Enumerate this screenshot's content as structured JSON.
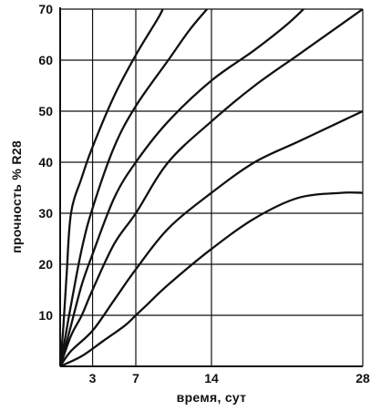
{
  "chart_data": {
    "type": "line",
    "title": "",
    "xlabel": "время,  сут",
    "ylabel": "прочность % R28",
    "xlim": [
      0,
      28
    ],
    "ylim": [
      0,
      70
    ],
    "x_ticks": [
      {
        "value": 3,
        "label": "3"
      },
      {
        "value": 7,
        "label": "7"
      },
      {
        "value": 14,
        "label": "14"
      },
      {
        "value": 28,
        "label": "28"
      }
    ],
    "y_ticks": [
      {
        "value": 10,
        "label": "10"
      },
      {
        "value": 20,
        "label": "20"
      },
      {
        "value": 30,
        "label": "30"
      },
      {
        "value": 40,
        "label": "40"
      },
      {
        "value": 50,
        "label": "50"
      },
      {
        "value": 60,
        "label": "60"
      },
      {
        "value": 70,
        "label": "70"
      }
    ],
    "grid": true,
    "legend": "none",
    "series": [
      {
        "points": [
          [
            0,
            0
          ],
          [
            0.3,
            8
          ],
          [
            0.6,
            18
          ],
          [
            1,
            30
          ],
          [
            2,
            37
          ],
          [
            3,
            43
          ],
          [
            5,
            53
          ],
          [
            7,
            61
          ],
          [
            9,
            68
          ],
          [
            9.5,
            70
          ]
        ]
      },
      {
        "points": [
          [
            0,
            0
          ],
          [
            0.5,
            6
          ],
          [
            1,
            12
          ],
          [
            2,
            23
          ],
          [
            3,
            31
          ],
          [
            5,
            43
          ],
          [
            7,
            51
          ],
          [
            10,
            60
          ],
          [
            12,
            66
          ],
          [
            14,
            71
          ]
        ]
      },
      {
        "points": [
          [
            0,
            0
          ],
          [
            1,
            8
          ],
          [
            2,
            16
          ],
          [
            3,
            22
          ],
          [
            5,
            33
          ],
          [
            7,
            40
          ],
          [
            10,
            48
          ],
          [
            14,
            56
          ],
          [
            18,
            62
          ],
          [
            21,
            67
          ],
          [
            23,
            71
          ]
        ]
      },
      {
        "points": [
          [
            0,
            0
          ],
          [
            1,
            6
          ],
          [
            2,
            10
          ],
          [
            3,
            15
          ],
          [
            5,
            24
          ],
          [
            7,
            30
          ],
          [
            10,
            40
          ],
          [
            14,
            48
          ],
          [
            18,
            55
          ],
          [
            22,
            61
          ],
          [
            26,
            67
          ],
          [
            28,
            70
          ]
        ]
      },
      {
        "points": [
          [
            0,
            0
          ],
          [
            1,
            3
          ],
          [
            3,
            7
          ],
          [
            5,
            13
          ],
          [
            7,
            19
          ],
          [
            10,
            27
          ],
          [
            14,
            34
          ],
          [
            18,
            40
          ],
          [
            22,
            44
          ],
          [
            26,
            48
          ],
          [
            28,
            50
          ]
        ]
      },
      {
        "points": [
          [
            0,
            0
          ],
          [
            2,
            2
          ],
          [
            4,
            5
          ],
          [
            6,
            8
          ],
          [
            7,
            10
          ],
          [
            8,
            12
          ],
          [
            10,
            16
          ],
          [
            14,
            23
          ],
          [
            18,
            29
          ],
          [
            22,
            33
          ],
          [
            26,
            34
          ],
          [
            28,
            34
          ]
        ]
      }
    ]
  },
  "colors": {
    "line": "#111111",
    "grid": "#111111",
    "background": "#ffffff"
  }
}
